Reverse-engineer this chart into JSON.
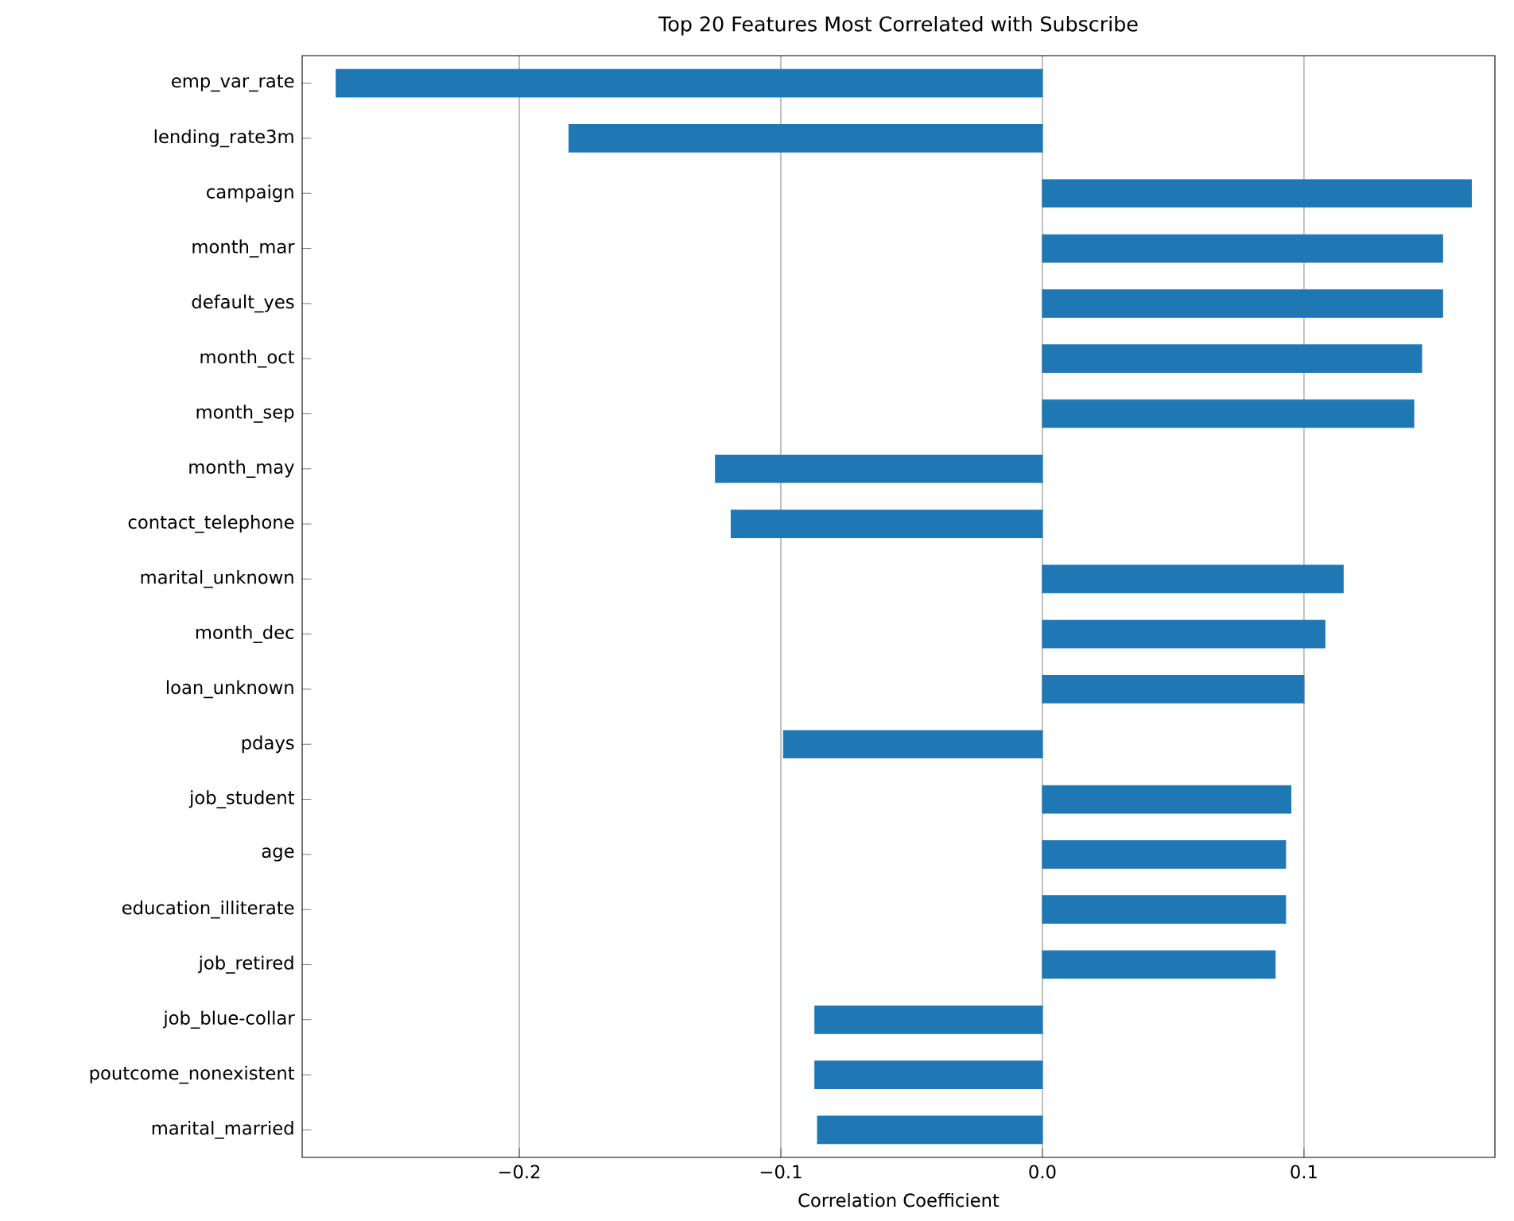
{
  "chart_data": {
    "type": "bar",
    "orientation": "horizontal",
    "title": "Top 20 Features Most Correlated with Subscribe",
    "xlabel": "Correlation Coefficient",
    "categories": [
      "emp_var_rate",
      "lending_rate3m",
      "campaign",
      "month_mar",
      "default_yes",
      "month_oct",
      "month_sep",
      "month_may",
      "contact_telephone",
      "marital_unknown",
      "month_dec",
      "loan_unknown",
      "pdays",
      "job_student",
      "age",
      "education_illiterate",
      "job_retired",
      "job_blue-collar",
      "poutcome_nonexistent",
      "marital_married"
    ],
    "values": [
      -0.27,
      -0.181,
      0.164,
      0.153,
      0.153,
      0.145,
      0.142,
      -0.125,
      -0.119,
      0.115,
      0.108,
      0.1,
      -0.099,
      0.095,
      0.093,
      0.093,
      0.089,
      -0.087,
      -0.087,
      -0.086
    ],
    "color": "#1f77b4",
    "xlim": [
      -0.283,
      0.173
    ],
    "xticks": [
      {
        "value": -0.2,
        "label": "−0.2"
      },
      {
        "value": -0.1,
        "label": "−0.1"
      },
      {
        "value": 0.0,
        "label": "0.0"
      },
      {
        "value": 0.1,
        "label": "0.1"
      }
    ],
    "grid": "x"
  }
}
